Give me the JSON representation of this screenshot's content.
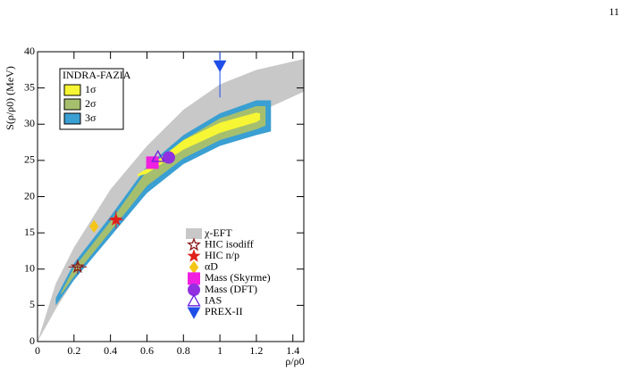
{
  "page_number": "11",
  "chart_data": {
    "type": "scatter",
    "xlabel": "ρ/ρ0",
    "ylabel": "S(ρ/ρ0) (MeV)",
    "xlim": [
      0,
      1.46
    ],
    "ylim": [
      0,
      40
    ],
    "xticks": [
      0,
      0.2,
      0.4,
      0.6,
      0.8,
      1,
      1.2,
      1.4
    ],
    "yticks": [
      0,
      5,
      10,
      15,
      20,
      25,
      30,
      35,
      40
    ],
    "legend_title": "INDRA-FAZIA",
    "bands": [
      {
        "name": "χ-EFT",
        "color": "#c8c8c8",
        "legend": "lower right",
        "x": [
          0,
          0.1,
          0.2,
          0.4,
          0.6,
          0.8,
          1.0,
          1.2,
          1.46
        ],
        "lower": [
          0,
          4.5,
          8.5,
          15,
          20.5,
          25,
          28.5,
          31.5,
          34.5
        ],
        "upper": [
          0,
          8,
          13,
          21,
          27,
          32,
          35.5,
          37.5,
          39
        ]
      },
      {
        "name": "3σ",
        "color": "#3a9fd2",
        "legend": "upper left",
        "x": [
          0.1,
          0.2,
          0.4,
          0.6,
          0.8,
          1.0,
          1.2,
          1.28
        ],
        "lower": [
          5,
          8.5,
          14.5,
          20.5,
          24.5,
          27,
          28.5,
          29
        ],
        "upper": [
          6,
          10.8,
          17.3,
          24.2,
          28.5,
          31.5,
          33.3,
          33.3
        ]
      },
      {
        "name": "2σ",
        "color": "#a6bf6e",
        "legend": "upper left",
        "x": [
          0.13,
          0.2,
          0.4,
          0.6,
          0.8,
          1.0,
          1.2,
          1.25
        ],
        "lower": [
          6.5,
          9,
          15.2,
          21.5,
          25.3,
          27.8,
          29.3,
          29.8
        ],
        "upper": [
          6.8,
          10.2,
          16.6,
          23.6,
          27.8,
          30.8,
          32.5,
          32.5
        ]
      },
      {
        "name": "1σ",
        "color": "#f6f634",
        "legend": "upper left",
        "x": [
          0.55,
          0.6,
          0.8,
          1.0,
          1.2,
          1.22
        ],
        "lower": [
          22.8,
          23.2,
          26.5,
          28.8,
          30.3,
          30.6
        ],
        "upper": [
          23.1,
          23.9,
          27.8,
          30.2,
          31.6,
          31.5
        ]
      }
    ],
    "series": [
      {
        "name": "HIC isodiff",
        "color": "#8b1a1a",
        "marker": "open-star",
        "x": [
          0.22
        ],
        "values": [
          10.3
        ],
        "xerr": [
          0.05
        ],
        "yerr": [
          1.0
        ]
      },
      {
        "name": "HIC n/p",
        "color": "#e0201a",
        "marker": "star",
        "x": [
          0.43
        ],
        "values": [
          16.8
        ],
        "xerr": [
          0.04
        ],
        "yerr": [
          1.2
        ]
      },
      {
        "name": "αD",
        "color": "#f5c518",
        "marker": "diamond",
        "x": [
          0.31
        ],
        "values": [
          15.9
        ]
      },
      {
        "name": "Mass (Skyrme)",
        "color": "#f020e0",
        "marker": "square",
        "x": [
          0.63
        ],
        "values": [
          24.7
        ]
      },
      {
        "name": "Mass (DFT)",
        "color": "#9030e0",
        "marker": "circle",
        "x": [
          0.72
        ],
        "values": [
          25.4
        ]
      },
      {
        "name": "IAS",
        "color": "#6a1ee0",
        "marker": "open-triangle",
        "x": [
          0.66
        ],
        "values": [
          25.5
        ]
      },
      {
        "name": "PREX-II",
        "color": "#1f4fe8",
        "marker": "triangle-down",
        "x": [
          1.0
        ],
        "values": [
          38.1
        ],
        "yerr": [
          4.4
        ]
      }
    ]
  }
}
